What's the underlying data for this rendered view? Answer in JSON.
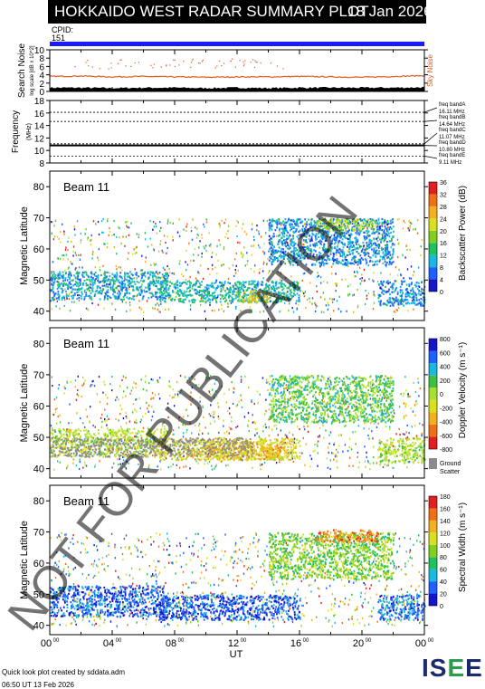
{
  "title": "HOKKAIDO WEST RADAR SUMMARY PLOT",
  "date": "18 Jan 2026",
  "cpid_label": "CPID:",
  "cpid_value": "151",
  "watermark": "NOT FOR PUBLICATION",
  "footer": {
    "line1": "Quick look plot created by sddata.adm",
    "line2": "06:50 UT 13 Feb 2026"
  },
  "logo": {
    "letters": [
      "IS",
      "E",
      "E"
    ],
    "colors": [
      "#1a2a6c",
      "#2e9a4b",
      "#1a2a6c"
    ]
  },
  "x_axis": {
    "label": "UT",
    "ticks": [
      {
        "h": "00",
        "s": "00"
      },
      {
        "h": "04",
        "s": "00"
      },
      {
        "h": "08",
        "s": "00"
      },
      {
        "h": "12",
        "s": "00"
      },
      {
        "h": "16",
        "s": "00"
      },
      {
        "h": "20",
        "s": "00"
      },
      {
        "h": "00",
        "s": "00"
      }
    ]
  },
  "chart_data": [
    {
      "type": "line",
      "ylabel": "Search Noise",
      "ylabel_sub": "log scale [dB x 10^2]",
      "ylim": [
        0,
        10
      ],
      "yticks": [
        0,
        2,
        4,
        6,
        8,
        10
      ],
      "series": [
        {
          "name": "Sky Noise",
          "color": "#e05a1e"
        }
      ],
      "x_hours": [
        0,
        2,
        4,
        6,
        8,
        10,
        12,
        14,
        16,
        18,
        20,
        22,
        24
      ],
      "sky_noise": [
        3.6,
        3.7,
        3.5,
        3.6,
        3.5,
        3.4,
        3.5,
        3.5,
        3.6,
        3.5,
        3.4,
        3.6,
        3.8
      ],
      "search_noise": [
        0.9,
        0.9,
        0.8,
        0.9,
        0.9,
        0.8,
        0.9,
        0.8,
        0.9,
        0.9,
        0.9,
        0.9,
        1.0
      ]
    },
    {
      "type": "line",
      "ylabel": "Frequency",
      "yunit": "(MHz)",
      "ylim": [
        8,
        18
      ],
      "yticks": [
        8,
        10,
        12,
        14,
        16,
        18
      ],
      "freq_bands": [
        {
          "label": "freq bandA",
          "value": "16.11 MHz",
          "mhz": 16.11
        },
        {
          "label": "freq bandB",
          "value": "14.64 MHz",
          "mhz": 14.64
        },
        {
          "label": "freq bandC",
          "value": "11.07 MHz",
          "mhz": 11.07
        },
        {
          "label": "freq bandD",
          "value": "10.80 MHz",
          "mhz": 10.8
        },
        {
          "label": "freq bandE",
          "value": "9.11 MHz",
          "mhz": 9.11
        }
      ],
      "operating_frequency_mhz": 10.8
    },
    {
      "type": "heatmap",
      "panel_label": "Beam 11",
      "ylabel": "Magnetic Latitude",
      "ylim": [
        37,
        85
      ],
      "yticks": [
        40,
        50,
        60,
        70,
        80
      ],
      "colorbar": {
        "title": "Backscatter Power (dB)",
        "ticks": [
          "0",
          "4",
          "8",
          "12",
          "16",
          "20",
          "24",
          "28",
          "32",
          "36"
        ],
        "colors": [
          "#1616c8",
          "#2060ff",
          "#18b8e0",
          "#20c060",
          "#80d020",
          "#d8e020",
          "#f0b020",
          "#f07018",
          "#e02020"
        ]
      },
      "regions": [
        {
          "t0": 0,
          "t1": 7.5,
          "lat0": 44,
          "lat1": 53,
          "level": 0.25
        },
        {
          "t0": 7,
          "t1": 16,
          "lat0": 43,
          "lat1": 50,
          "level": 0.3
        },
        {
          "t0": 12,
          "t1": 14,
          "lat0": 43,
          "lat1": 47,
          "level": 0.65
        },
        {
          "t0": 14,
          "t1": 22,
          "lat0": 55,
          "lat1": 70,
          "level": 0.2
        },
        {
          "t0": 17,
          "t1": 21,
          "lat0": 66,
          "lat1": 70,
          "level": 0.55
        },
        {
          "t0": 21,
          "t1": 24,
          "lat0": 42,
          "lat1": 50,
          "level": 0.2
        }
      ]
    },
    {
      "type": "heatmap",
      "panel_label": "Beam 11",
      "ylabel": "Magnetic Latitude",
      "ylim": [
        37,
        85
      ],
      "yticks": [
        40,
        50,
        60,
        70,
        80
      ],
      "colorbar": {
        "title": "Doppler Velocity (m s⁻¹)",
        "ticks": [
          "-800",
          "-600",
          "-400",
          "-200",
          "0",
          "200",
          "400",
          "600",
          "800"
        ],
        "colors": [
          "#e02020",
          "#f07018",
          "#f0b020",
          "#d8e020",
          "#a8e030",
          "#40c040",
          "#18b8e0",
          "#2060ff",
          "#1616c8"
        ]
      },
      "ground_scatter_label": "Ground Scatter",
      "regions": [
        {
          "t0": 0,
          "t1": 7.5,
          "lat0": 44,
          "lat1": 53,
          "level": 0.45
        },
        {
          "t0": 7,
          "t1": 16,
          "lat0": 43,
          "lat1": 50,
          "level": 0.35
        },
        {
          "t0": 10,
          "t1": 15,
          "lat0": 43,
          "lat1": 49,
          "level": 0.3
        },
        {
          "t0": 14,
          "t1": 22,
          "lat0": 55,
          "lat1": 70,
          "level": 0.6
        },
        {
          "t0": 21,
          "t1": 24,
          "lat0": 42,
          "lat1": 50,
          "level": 0.5
        }
      ]
    },
    {
      "type": "heatmap",
      "panel_label": "Beam 11",
      "ylabel": "Magnetic Latitude",
      "ylim": [
        37,
        85
      ],
      "yticks": [
        40,
        50,
        60,
        70,
        80
      ],
      "colorbar": {
        "title": "Spectral Width (m s⁻¹)",
        "ticks": [
          "0",
          "20",
          "40",
          "60",
          "80",
          "100",
          "120",
          "140",
          "160",
          "180"
        ],
        "colors": [
          "#1616c8",
          "#2060ff",
          "#18b8e0",
          "#20c060",
          "#80d020",
          "#d8e020",
          "#f0b020",
          "#f07018",
          "#e02020"
        ]
      },
      "regions": [
        {
          "t0": 0,
          "t1": 7.5,
          "lat0": 43,
          "lat1": 53,
          "level": 0.12
        },
        {
          "t0": 7,
          "t1": 16,
          "lat0": 42,
          "lat1": 50,
          "level": 0.1
        },
        {
          "t0": 14,
          "t1": 22,
          "lat0": 55,
          "lat1": 70,
          "level": 0.5
        },
        {
          "t0": 17,
          "t1": 21,
          "lat0": 67,
          "lat1": 71,
          "level": 0.85
        },
        {
          "t0": 21,
          "t1": 24,
          "lat0": 42,
          "lat1": 50,
          "level": 0.15
        }
      ]
    }
  ]
}
